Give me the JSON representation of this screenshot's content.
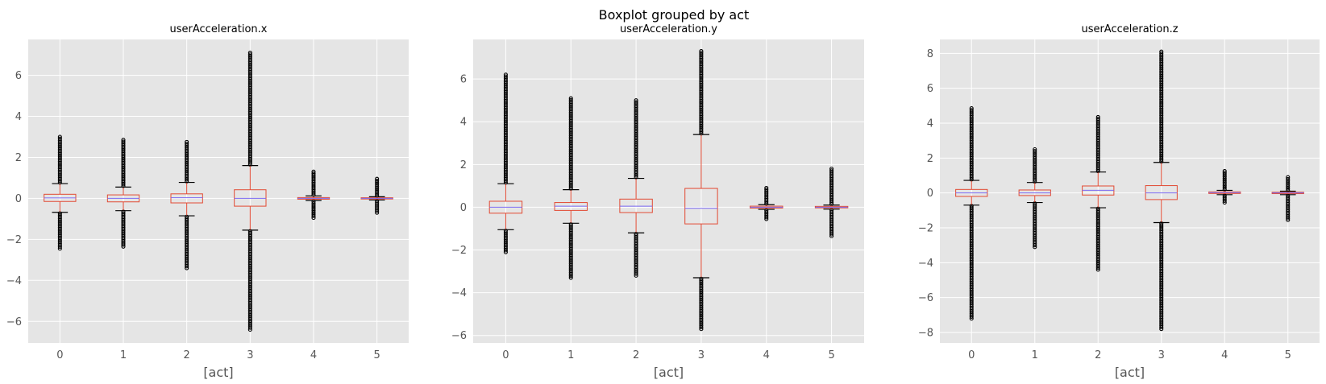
{
  "suptitle": "Boxplot grouped by act",
  "chart_data": [
    {
      "type": "box",
      "title": "userAcceleration.x",
      "xlabel": "[act]",
      "ylabel": "",
      "categories": [
        "0",
        "1",
        "2",
        "3",
        "4",
        "5"
      ],
      "ylim": [
        -7.05,
        7.75
      ],
      "yticks": [
        -6,
        -4,
        -2,
        0,
        2,
        4,
        6
      ],
      "grid": true,
      "boxes": [
        {
          "cat": "0",
          "q1": -0.15,
          "median": 0.02,
          "q3": 0.2,
          "whisker_low": -0.68,
          "whisker_high": 0.72,
          "flier_low": -2.45,
          "flier_high": 3.0
        },
        {
          "cat": "1",
          "q1": -0.17,
          "median": 0.0,
          "q3": 0.17,
          "whisker_low": -0.6,
          "whisker_high": 0.55,
          "flier_low": -2.35,
          "flier_high": 2.85
        },
        {
          "cat": "2",
          "q1": -0.22,
          "median": 0.03,
          "q3": 0.22,
          "whisker_low": -0.85,
          "whisker_high": 0.78,
          "flier_low": -3.4,
          "flier_high": 2.75
        },
        {
          "cat": "3",
          "q1": -0.38,
          "median": 0.0,
          "q3": 0.42,
          "whisker_low": -1.55,
          "whisker_high": 1.6,
          "flier_low": -6.4,
          "flier_high": 7.1
        },
        {
          "cat": "4",
          "q1": -0.04,
          "median": 0.0,
          "q3": 0.04,
          "whisker_low": -0.1,
          "whisker_high": 0.12,
          "flier_low": -0.95,
          "flier_high": 1.3
        },
        {
          "cat": "5",
          "q1": -0.03,
          "median": 0.0,
          "q3": 0.03,
          "whisker_low": -0.08,
          "whisker_high": 0.08,
          "flier_low": -0.7,
          "flier_high": 0.95
        }
      ]
    },
    {
      "type": "box",
      "title": "userAcceleration.y",
      "xlabel": "[act]",
      "ylabel": "",
      "categories": [
        "0",
        "1",
        "2",
        "3",
        "4",
        "5"
      ],
      "ylim": [
        -6.35,
        7.85
      ],
      "yticks": [
        -6,
        -4,
        -2,
        0,
        2,
        4,
        6
      ],
      "grid": true,
      "boxes": [
        {
          "cat": "0",
          "q1": -0.28,
          "median": 0.0,
          "q3": 0.28,
          "whisker_low": -1.05,
          "whisker_high": 1.1,
          "flier_low": -2.1,
          "flier_high": 6.2
        },
        {
          "cat": "1",
          "q1": -0.15,
          "median": 0.05,
          "q3": 0.22,
          "whisker_low": -0.75,
          "whisker_high": 0.82,
          "flier_low": -3.3,
          "flier_high": 5.1
        },
        {
          "cat": "2",
          "q1": -0.25,
          "median": 0.05,
          "q3": 0.38,
          "whisker_low": -1.2,
          "whisker_high": 1.35,
          "flier_low": -3.2,
          "flier_high": 5.0
        },
        {
          "cat": "3",
          "q1": -0.78,
          "median": -0.05,
          "q3": 0.88,
          "whisker_low": -3.3,
          "whisker_high": 3.4,
          "flier_low": -5.7,
          "flier_high": 7.3
        },
        {
          "cat": "4",
          "q1": -0.04,
          "median": 0.0,
          "q3": 0.05,
          "whisker_low": -0.1,
          "whisker_high": 0.12,
          "flier_low": -0.55,
          "flier_high": 0.9
        },
        {
          "cat": "5",
          "q1": -0.03,
          "median": 0.0,
          "q3": 0.04,
          "whisker_low": -0.09,
          "whisker_high": 0.1,
          "flier_low": -1.35,
          "flier_high": 1.8
        }
      ]
    },
    {
      "type": "box",
      "title": "userAcceleration.z",
      "xlabel": "[act]",
      "ylabel": "",
      "categories": [
        "0",
        "1",
        "2",
        "3",
        "4",
        "5"
      ],
      "ylim": [
        -8.6,
        8.8
      ],
      "yticks": [
        -8,
        -6,
        -4,
        -2,
        0,
        2,
        4,
        6,
        8
      ],
      "grid": true,
      "boxes": [
        {
          "cat": "0",
          "q1": -0.2,
          "median": 0.0,
          "q3": 0.2,
          "whisker_low": -0.7,
          "whisker_high": 0.72,
          "flier_low": -7.2,
          "flier_high": 4.85
        },
        {
          "cat": "1",
          "q1": -0.15,
          "median": 0.0,
          "q3": 0.17,
          "whisker_low": -0.55,
          "whisker_high": 0.6,
          "flier_low": -3.1,
          "flier_high": 2.5
        },
        {
          "cat": "2",
          "q1": -0.12,
          "median": 0.15,
          "q3": 0.4,
          "whisker_low": -0.85,
          "whisker_high": 1.2,
          "flier_low": -4.4,
          "flier_high": 4.35
        },
        {
          "cat": "3",
          "q1": -0.38,
          "median": 0.0,
          "q3": 0.42,
          "whisker_low": -1.7,
          "whisker_high": 1.75,
          "flier_low": -7.8,
          "flier_high": 8.1
        },
        {
          "cat": "4",
          "q1": -0.03,
          "median": 0.02,
          "q3": 0.06,
          "whisker_low": -0.1,
          "whisker_high": 0.15,
          "flier_low": -0.55,
          "flier_high": 1.25
        },
        {
          "cat": "5",
          "q1": -0.04,
          "median": 0.0,
          "q3": 0.04,
          "whisker_low": -0.1,
          "whisker_high": 0.1,
          "flier_low": -1.55,
          "flier_high": 0.9
        }
      ]
    }
  ],
  "colors": {
    "axes_bg": "#e5e5e5",
    "grid": "#ffffff",
    "box": "#e24a33",
    "median": "#7a68f0",
    "whisker": "#e24a33",
    "cap": "#000000",
    "flier": "#000000"
  }
}
